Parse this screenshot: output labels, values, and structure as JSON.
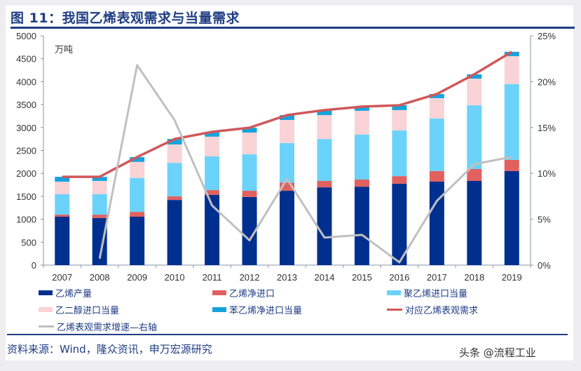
{
  "title": "图 11：我国乙烯表观需求与当量需求",
  "source": "资料来源：Wind，隆众资讯，申万宏源研究",
  "watermark": "头条 @流程工业",
  "chart_data": {
    "type": "bar",
    "stacked": true,
    "unit_label": "万吨",
    "categories": [
      "2007",
      "2008",
      "2009",
      "2010",
      "2011",
      "2012",
      "2013",
      "2014",
      "2015",
      "2016",
      "2017",
      "2018",
      "2019"
    ],
    "y_left": {
      "lim": [
        0,
        5000
      ],
      "ticks": [
        0,
        500,
        1000,
        1500,
        2000,
        2500,
        3000,
        3500,
        4000,
        4500,
        5000
      ]
    },
    "y_right": {
      "lim": [
        0,
        25
      ],
      "ticks": [
        "0%",
        "5%",
        "10%",
        "15%",
        "20%",
        "25%"
      ]
    },
    "grid": false,
    "legend_position": "bottom",
    "series": [
      {
        "name": "乙烯产量",
        "type": "bar",
        "color": "#00308f",
        "values": [
          1055,
          1025,
          1055,
          1420,
          1530,
          1485,
          1620,
          1695,
          1710,
          1775,
          1820,
          1835,
          2050
        ]
      },
      {
        "name": "乙烯净进口",
        "type": "bar",
        "color": "#e0615f",
        "values": [
          45,
          75,
          105,
          80,
          105,
          135,
          180,
          140,
          155,
          165,
          230,
          260,
          245
        ]
      },
      {
        "name": "聚乙烯进口当量",
        "type": "bar",
        "color": "#6bd3fa",
        "values": [
          445,
          445,
          740,
          730,
          735,
          795,
          860,
          915,
          980,
          995,
          1145,
          1390,
          1650
        ]
      },
      {
        "name": "乙二醇进口当量",
        "type": "bar",
        "color": "#f9d3d6",
        "values": [
          275,
          290,
          350,
          400,
          430,
          475,
          505,
          520,
          520,
          445,
          445,
          580,
          610
        ]
      },
      {
        "name": "苯乙烯净进口当量",
        "type": "bar",
        "color": "#16a3dd",
        "values": [
          105,
          90,
          105,
          120,
          105,
          105,
          105,
          110,
          90,
          105,
          90,
          95,
          95
        ]
      },
      {
        "name": "对应乙烯表观需求",
        "type": "line",
        "axis": "left",
        "color": "#d0585a",
        "values": [
          1925,
          1925,
          2355,
          2750,
          2905,
          2995,
          3270,
          3380,
          3455,
          3485,
          3730,
          4160,
          4650
        ]
      },
      {
        "name": "乙烯表观需求增速—右轴",
        "type": "line",
        "axis": "right",
        "color": "#c0c0c0",
        "values": [
          null,
          0.7,
          21.8,
          15.8,
          6.5,
          2.7,
          9.4,
          3.0,
          3.3,
          0.3,
          7.0,
          11.0,
          11.8
        ]
      }
    ]
  }
}
